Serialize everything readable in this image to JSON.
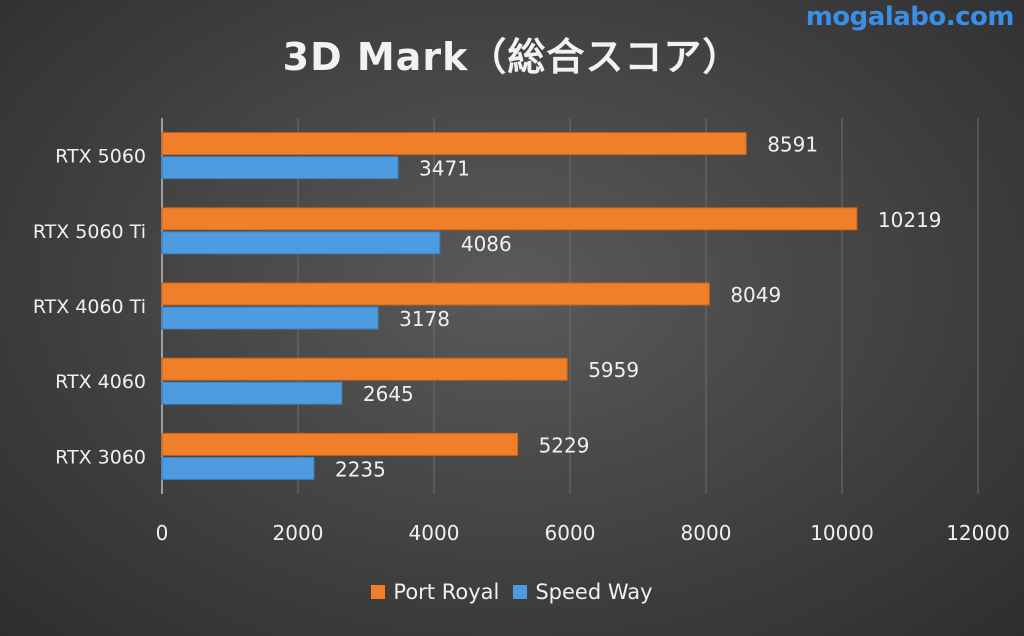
{
  "watermark": "mogalabo.com",
  "colors": {
    "port_royal": "#f07f2a",
    "speed_way": "#4f9be0",
    "grid": "#6e6e6e",
    "axis": "#bdbdbd"
  },
  "chart_data": {
    "type": "bar",
    "orientation": "horizontal",
    "title": "3D Mark（総合スコア）",
    "categories": [
      "RTX 5060",
      "RTX 5060 Ti",
      "RTX 4060 Ti",
      "RTX 4060",
      "RTX 3060"
    ],
    "series": [
      {
        "name": "Port Royal",
        "values": [
          8591,
          10219,
          8049,
          5959,
          5229
        ]
      },
      {
        "name": "Speed Way",
        "values": [
          3471,
          4086,
          3178,
          2645,
          2235
        ]
      }
    ],
    "xlim": [
      0,
      12000
    ],
    "xticks": [
      "0",
      "2000",
      "4000",
      "6000",
      "8000",
      "10000",
      "12000"
    ],
    "grid": true,
    "legend_position": "bottom"
  }
}
